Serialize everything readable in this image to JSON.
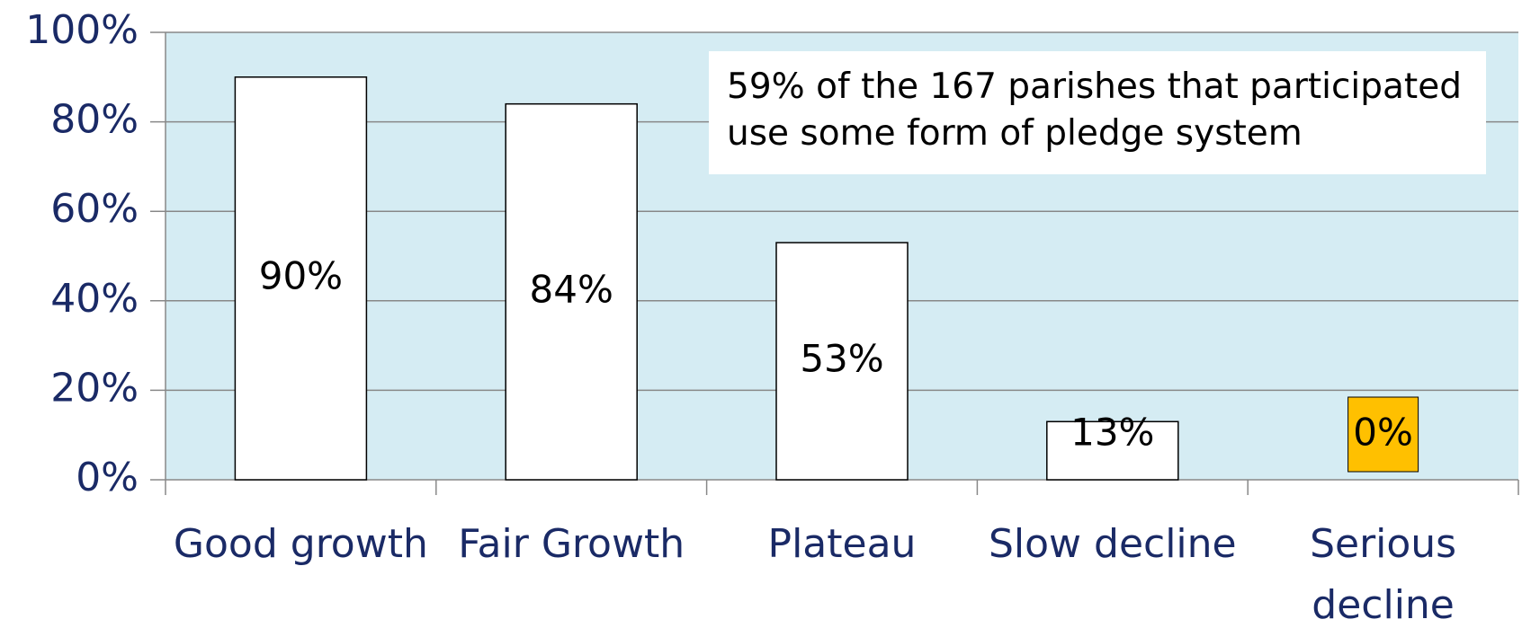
{
  "chart_data": {
    "type": "bar",
    "categories": [
      "Good growth",
      "Fair Growth",
      "Plateau",
      "Slow decline",
      "Serious decline"
    ],
    "values": [
      90,
      84,
      53,
      13,
      0
    ],
    "value_labels": [
      "90%",
      "84%",
      "53%",
      "13%",
      "0%"
    ],
    "value_label_backgrounds": [
      null,
      null,
      null,
      null,
      "#ffc000"
    ],
    "color": "#ffffff",
    "plot_background": "#d5ecf3",
    "annotation": "59% of the 167 parishes that participated use some form of pledge system",
    "ylim": [
      0,
      100
    ],
    "yticks": [
      {
        "value": 0,
        "label": "0%"
      },
      {
        "value": 20,
        "label": "20%"
      },
      {
        "value": 40,
        "label": "40%"
      },
      {
        "value": 60,
        "label": "60%"
      },
      {
        "value": 80,
        "label": "80%"
      },
      {
        "value": 100,
        "label": "100%"
      }
    ],
    "grid": true
  }
}
